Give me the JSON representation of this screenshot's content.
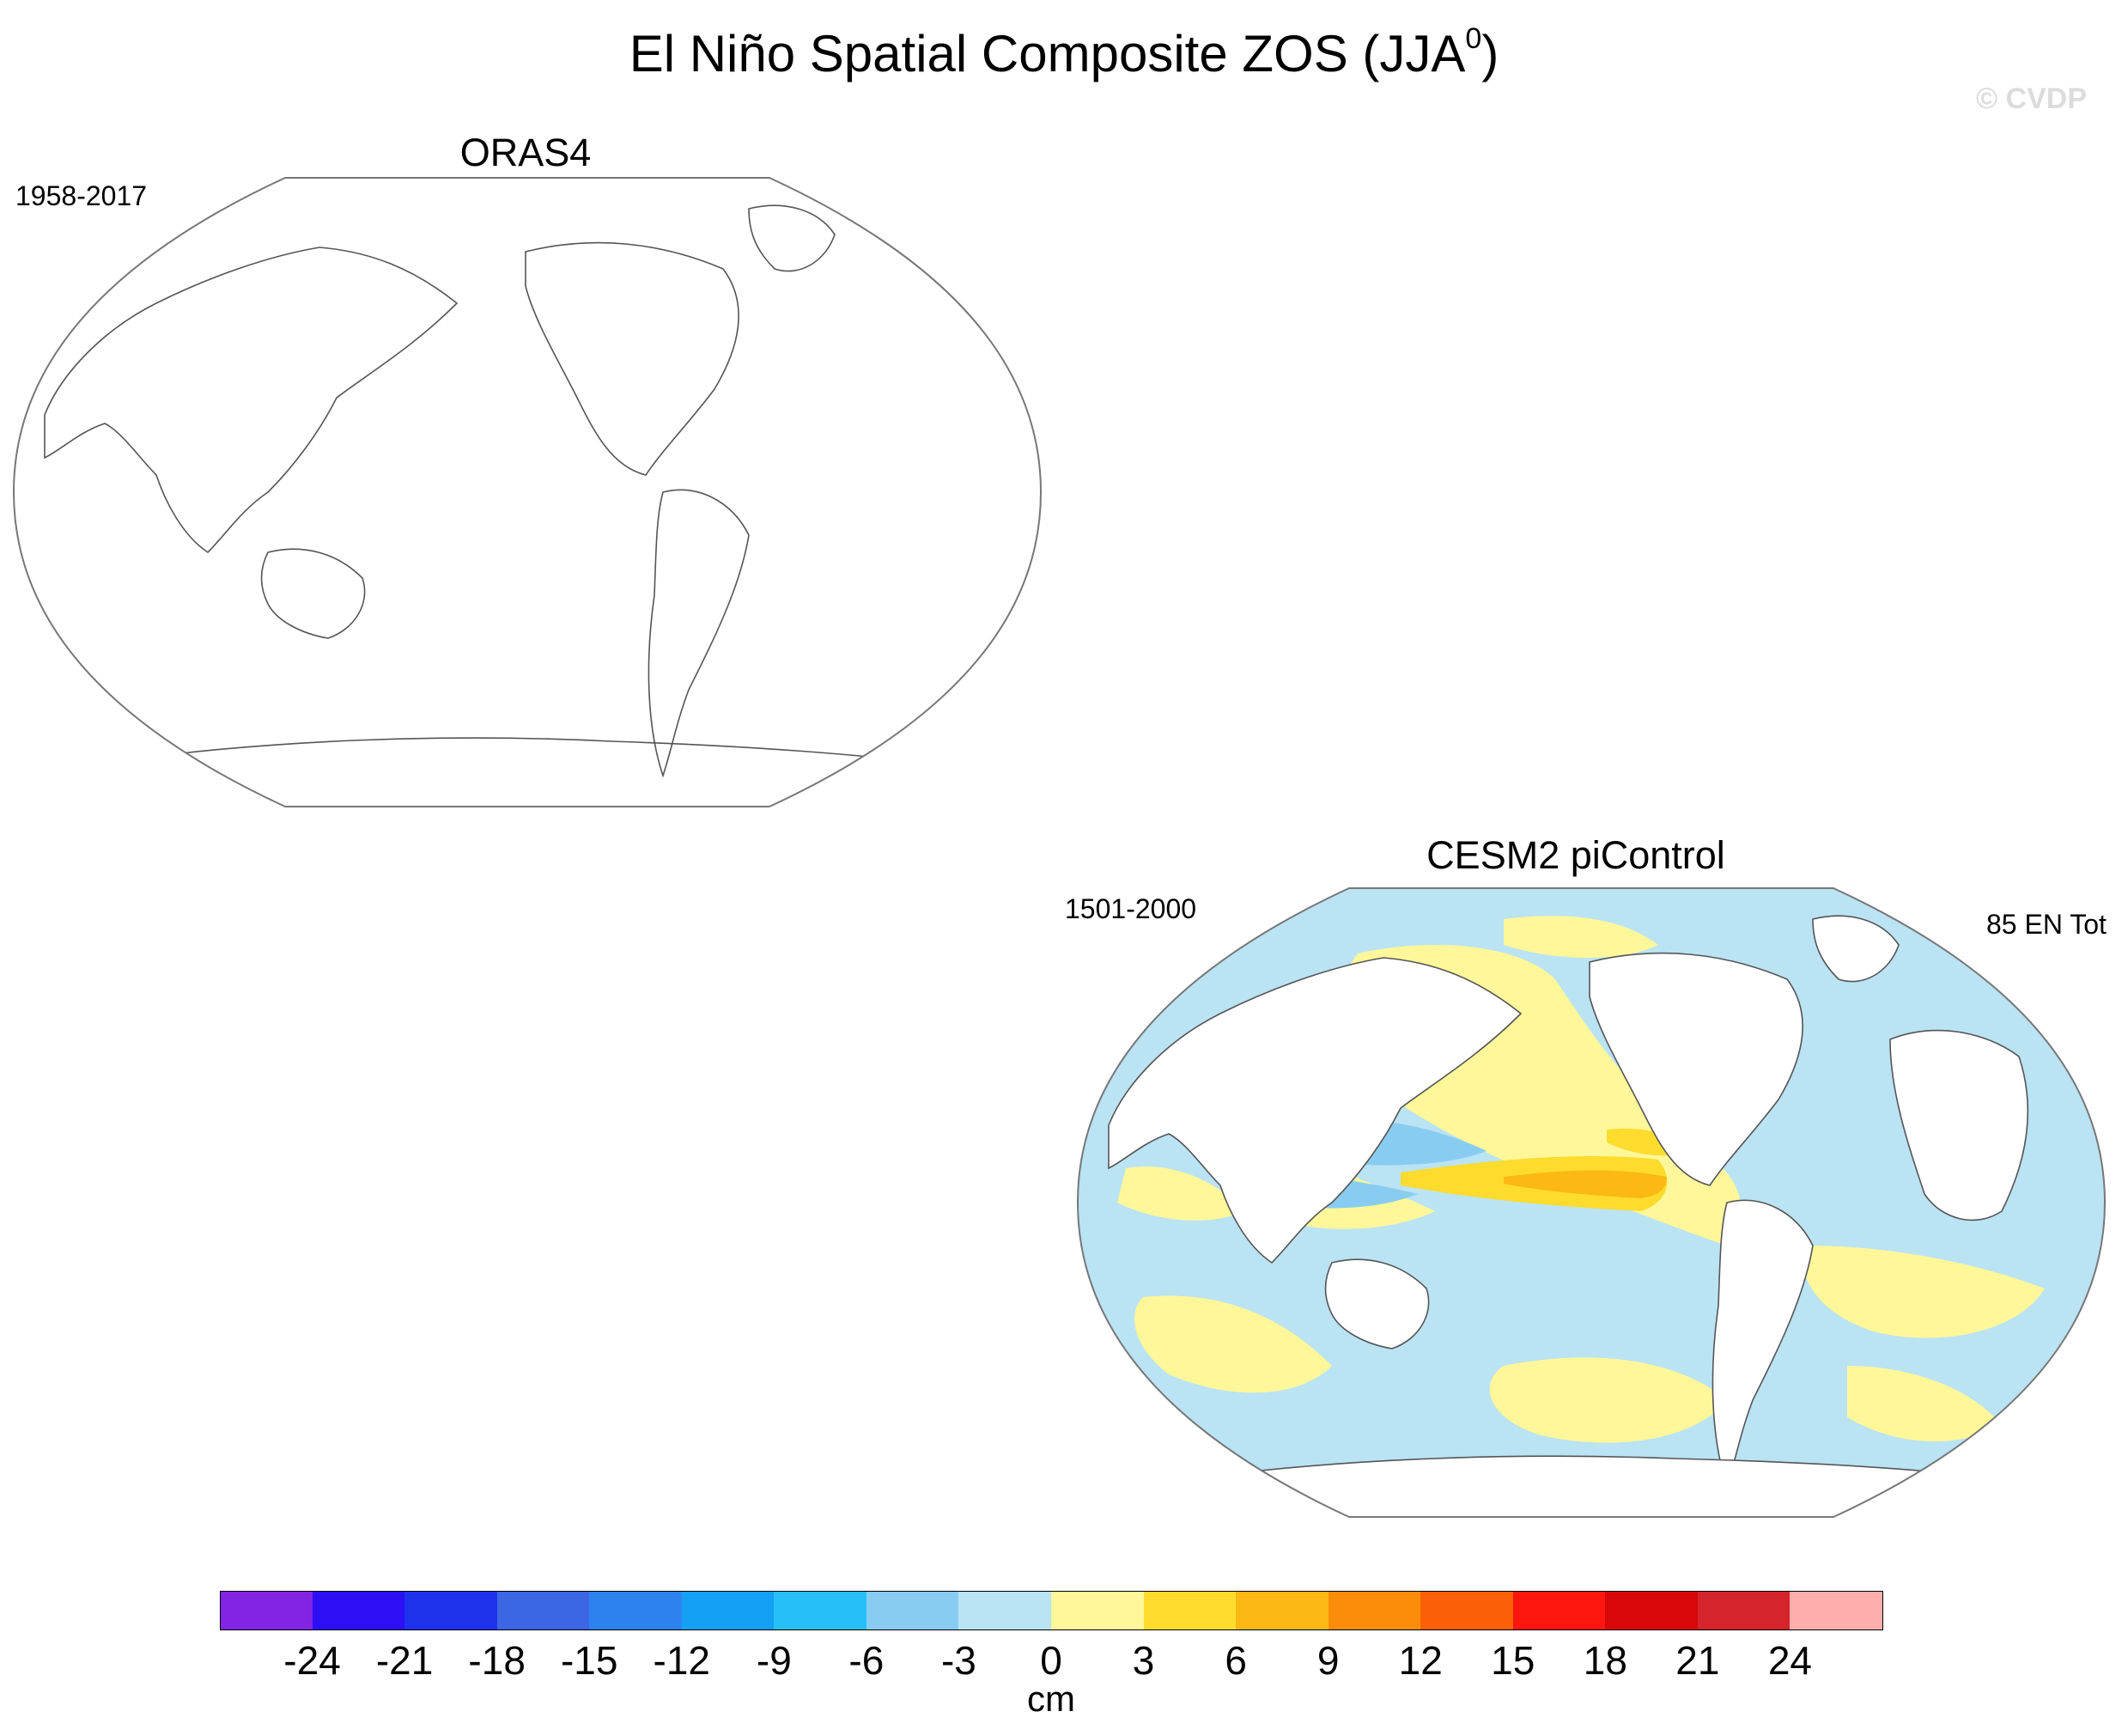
{
  "figure": {
    "title_main": "El Niño Spatial Composite ZOS (JJA",
    "title_sup": "0",
    "title_end": ")",
    "watermark": "© CVDP"
  },
  "panels": [
    {
      "id": "oras4",
      "title": "ORAS4",
      "period": "1958-2017",
      "count": ""
    },
    {
      "id": "cesm2",
      "title": "CESM2 piControl",
      "period": "1501-2000",
      "count": "85 EN Tot"
    }
  ],
  "colorbar": {
    "units": "cm",
    "labels": [
      "-24",
      "-21",
      "-18",
      "-15",
      "-12",
      "-9",
      "-6",
      "-3",
      "0",
      "3",
      "6",
      "9",
      "12",
      "15",
      "18",
      "21",
      "24"
    ],
    "colors": [
      "#8224e3",
      "#2d0ef5",
      "#1e32eb",
      "#3c66e3",
      "#2d82f0",
      "#13a0f5",
      "#27c0f6",
      "#88cdf1",
      "#bae3f4",
      "#fff799",
      "#fddc2e",
      "#fcb813",
      "#fb8d0b",
      "#fb5f07",
      "#fd160f",
      "#d80808",
      "#d5242c",
      "#ffaeae"
    ]
  },
  "chart_data": {
    "type": "heatmap",
    "title": "El Niño Spatial Composite ZOS (JJA0)",
    "units": "cm",
    "contour_levels": [
      -24,
      -21,
      -18,
      -15,
      -12,
      -9,
      -6,
      -3,
      0,
      3,
      6,
      9,
      12,
      15,
      18,
      21,
      24
    ],
    "maps": [
      {
        "name": "ORAS4",
        "period": "1958-2017",
        "status": "no data shown (blank map)"
      },
      {
        "name": "CESM2 piControl",
        "period": "1501-2000",
        "events": "85 EN Tot",
        "features": [
          {
            "region": "eastern equatorial Pacific",
            "range": [
              6,
              9
            ]
          },
          {
            "region": "equatorial Pacific band",
            "range": [
              3,
              6
            ]
          },
          {
            "region": "western Pacific warm pool",
            "range": [
              -9,
              -6
            ]
          },
          {
            "region": "most open ocean",
            "range": [
              -3,
              3
            ]
          }
        ]
      }
    ]
  }
}
